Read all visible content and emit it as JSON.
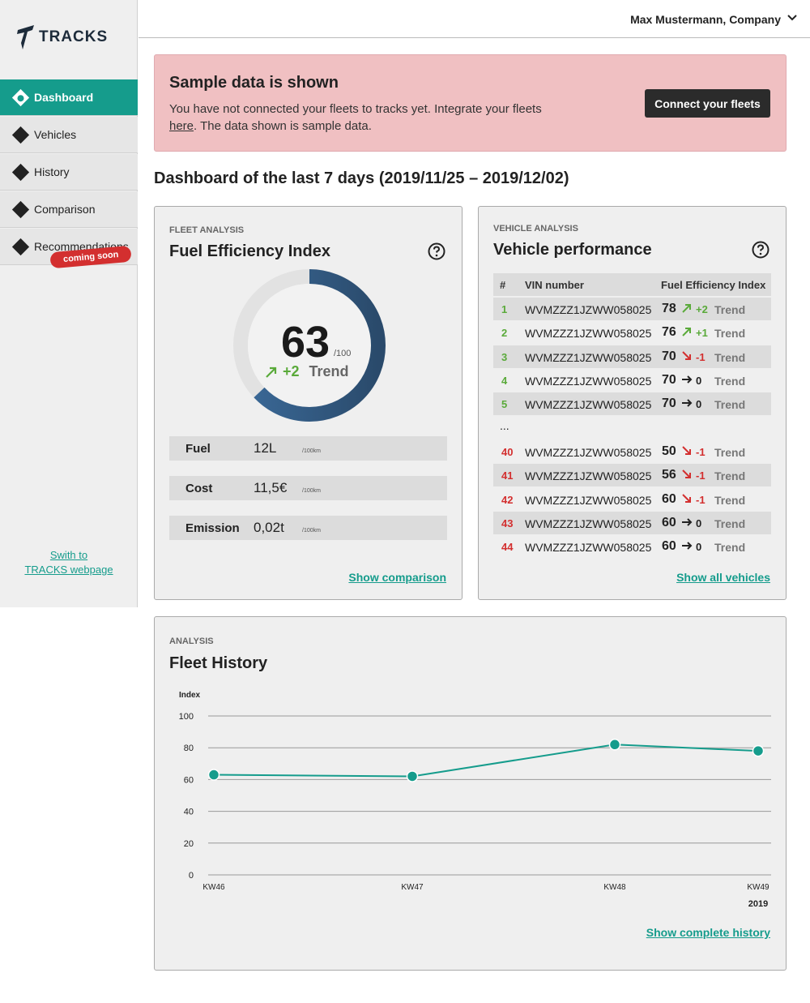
{
  "sidebar": {
    "logo_text": "TRACKS",
    "items": [
      {
        "label": "Dashboard"
      },
      {
        "label": "Vehicles"
      },
      {
        "label": "History"
      },
      {
        "label": "Comparison"
      },
      {
        "label": "Recommendations"
      }
    ],
    "coming_soon": "coming soon",
    "switch_link_line1": "Swith to",
    "switch_link_line2": "TRACKS  webpage"
  },
  "header": {
    "user": "Max Mustermann, Company"
  },
  "banner": {
    "title": "Sample data is shown",
    "text_before": "You have not connected your fleets to tracks yet. Integrate your fleets ",
    "link": "here",
    "text_after": ". The data shown is sample data.",
    "button": "Connect your fleets"
  },
  "dashboard_title": "Dashboard of the last 7 days (2019/11/25 – 2019/12/02)",
  "fleet": {
    "eyebrow": "FLEET ANALYSIS",
    "title": "Fuel Efficiency Index",
    "value": "63",
    "max": "/100",
    "score_fraction": 0.63,
    "delta": "+2",
    "trend": "Trend",
    "stats": [
      {
        "label": "Fuel",
        "value": "12L",
        "unit": "/100km"
      },
      {
        "label": "Cost",
        "value": "11,5€",
        "unit": "/100km"
      },
      {
        "label": "Emission",
        "value": "0,02t",
        "unit": "/100km"
      }
    ],
    "link": "Show comparison"
  },
  "vehicles": {
    "eyebrow": "VEHICLE ANALYSIS",
    "title": "Vehicle performance",
    "headers": {
      "num": "#",
      "vin": "VIN number",
      "fei": "Fuel Efficiency Index"
    },
    "rows": [
      {
        "num": "1",
        "vin": "WVMZZZ1JZWW058025",
        "fei": "78",
        "delta": "+2",
        "dir": "up",
        "trend": "Trend",
        "color": "green"
      },
      {
        "num": "2",
        "vin": "WVMZZZ1JZWW058025",
        "fei": "76",
        "delta": "+1",
        "dir": "up",
        "trend": "Trend",
        "color": "green"
      },
      {
        "num": "3",
        "vin": "WVMZZZ1JZWW058025",
        "fei": "70",
        "delta": "-1",
        "dir": "down",
        "trend": "Trend",
        "color": "green"
      },
      {
        "num": "4",
        "vin": "WVMZZZ1JZWW058025",
        "fei": "70",
        "delta": "0",
        "dir": "flat",
        "trend": "Trend",
        "color": "green"
      },
      {
        "num": "5",
        "vin": "WVMZZZ1JZWW058025",
        "fei": "70",
        "delta": "0",
        "dir": "flat",
        "trend": "Trend",
        "color": "green"
      },
      {
        "num": "40",
        "vin": "WVMZZZ1JZWW058025",
        "fei": "50",
        "delta": "-1",
        "dir": "down",
        "trend": "Trend",
        "color": "red"
      },
      {
        "num": "41",
        "vin": "WVMZZZ1JZWW058025",
        "fei": "56",
        "delta": "-1",
        "dir": "down",
        "trend": "Trend",
        "color": "red"
      },
      {
        "num": "42",
        "vin": "WVMZZZ1JZWW058025",
        "fei": "60",
        "delta": "-1",
        "dir": "down",
        "trend": "Trend",
        "color": "red"
      },
      {
        "num": "43",
        "vin": "WVMZZZ1JZWW058025",
        "fei": "60",
        "delta": "0",
        "dir": "flat",
        "trend": "Trend",
        "color": "red"
      },
      {
        "num": "44",
        "vin": "WVMZZZ1JZWW058025",
        "fei": "60",
        "delta": "0",
        "dir": "flat",
        "trend": "Trend",
        "color": "red"
      }
    ],
    "ellipsis": "...",
    "link": "Show all vehicles"
  },
  "history": {
    "eyebrow": "ANALYSIS",
    "title": "Fleet History",
    "link": "Show complete history"
  },
  "chart_data": {
    "type": "line",
    "ylabel": "Index",
    "ylim": [
      0,
      100
    ],
    "yticks": [
      0,
      20,
      40,
      60,
      80,
      100
    ],
    "categories": [
      "KW46",
      "KW47",
      "KW48",
      "KW49"
    ],
    "x_year": "2019",
    "series": [
      {
        "values": [
          63,
          62,
          82,
          78
        ]
      }
    ],
    "grid": true,
    "color": "#159c8c"
  },
  "colors": {
    "accent": "#159c8c",
    "up": "#5aaa3a",
    "down": "#d32f2f",
    "banner": "#f0c0c2",
    "gauge": "#3b6a99"
  }
}
